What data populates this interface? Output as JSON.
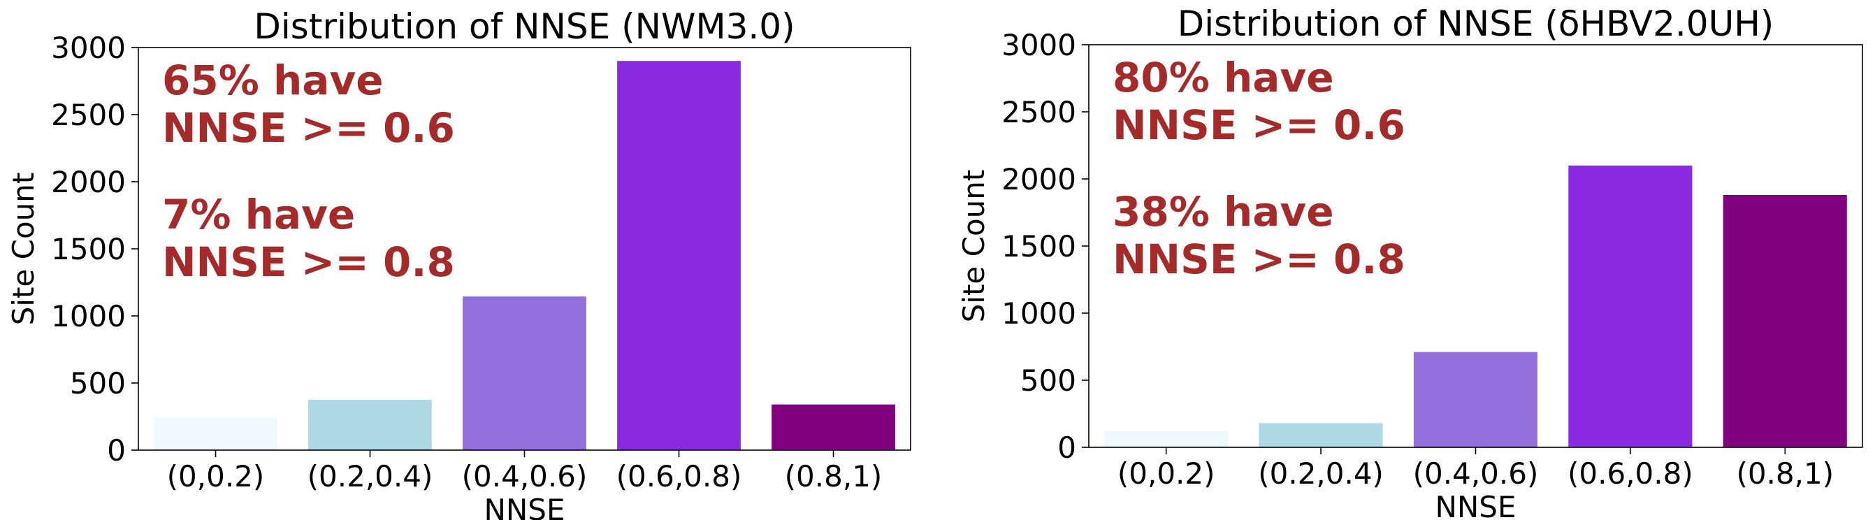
{
  "chart_data": [
    {
      "type": "bar",
      "title": "Distribution of NNSE (NWM3.0)",
      "xlabel": "NNSE",
      "ylabel": "Site Count",
      "ylim": [
        0,
        3000
      ],
      "yticks": [
        "0",
        "500",
        "1000",
        "1500",
        "2000",
        "2500",
        "3000"
      ],
      "categories": [
        "(0,0.2)",
        "(0.2,0.4)",
        "(0.4,0.6)",
        "(0.6,0.8)",
        "(0.8,1)"
      ],
      "values": [
        240,
        375,
        1145,
        2900,
        340
      ],
      "colors": [
        "#f0f8ff",
        "#add8e6",
        "#9370db",
        "#8a2be2",
        "#800080"
      ],
      "grid": false,
      "annotations": [
        {
          "lines": [
            "65% have",
            "NNSE >= 0.6"
          ],
          "color": "#a52a2a"
        },
        {
          "lines": [
            "7% have",
            "NNSE >= 0.8"
          ],
          "color": "#a52a2a"
        }
      ]
    },
    {
      "type": "bar",
      "title": "Distribution of NNSE (δHBV2.0UH)",
      "xlabel": "NNSE",
      "ylabel": "Site Count",
      "ylim": [
        0,
        3000
      ],
      "yticks": [
        "0",
        "500",
        "1000",
        "1500",
        "2000",
        "2500",
        "3000"
      ],
      "categories": [
        "(0,0.2)",
        "(0.2,0.4)",
        "(0.4,0.6)",
        "(0.6,0.8)",
        "(0.8,1)"
      ],
      "values": [
        120,
        180,
        710,
        2100,
        1880
      ],
      "colors": [
        "#f0f8ff",
        "#add8e6",
        "#9370db",
        "#8a2be2",
        "#800080"
      ],
      "grid": false,
      "annotations": [
        {
          "lines": [
            "80% have",
            "NNSE >= 0.6"
          ],
          "color": "#a52a2a"
        },
        {
          "lines": [
            "38% have",
            "NNSE >= 0.8"
          ],
          "color": "#a52a2a"
        }
      ]
    }
  ]
}
